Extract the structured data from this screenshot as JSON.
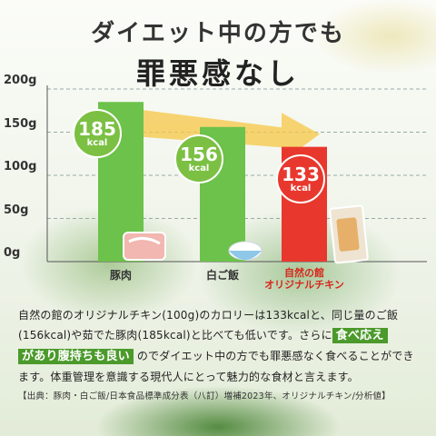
{
  "heading": {
    "line1": "ダイエット中の方でも",
    "line2": "罪悪感なし"
  },
  "chart_data": {
    "type": "bar",
    "categories": [
      "豚肉",
      "白ご飯",
      "自然の館オリジナルチキン"
    ],
    "category_lines": [
      [
        "豚肉"
      ],
      [
        "白ご飯"
      ],
      [
        "自然の館",
        "オリジナルチキン"
      ]
    ],
    "values": [
      185,
      156,
      133
    ],
    "value_unit": "kcal",
    "y_ticks": [
      "0g",
      "50g",
      "100g",
      "150g",
      "200g"
    ],
    "ylim": [
      0,
      200
    ],
    "colors": {
      "bar": "#6cc24a",
      "highlight": "#e8382e",
      "arrow": "#f6c744"
    },
    "highlight_index": 2
  },
  "body": {
    "part1": "自然の館のオリジナルチキン(100g)のカロリーは133kcalと、同じ量のご飯(156kcal)や茹でた豚肉(185kcal)と比べても低いです。さらに",
    "highlight1": "食べ応え",
    "highlight2": "があり腹持ちも良い",
    "part2": "のでダイエット中の方でも罪悪感なく食べることができます。体重管理を意識する現代人にとって魅力的な食材と言えます。"
  },
  "source": "【出典：豚肉・白ご飯/日本食品標準成分表（八訂）増補2023年、オリジナルチキン/分析値】"
}
